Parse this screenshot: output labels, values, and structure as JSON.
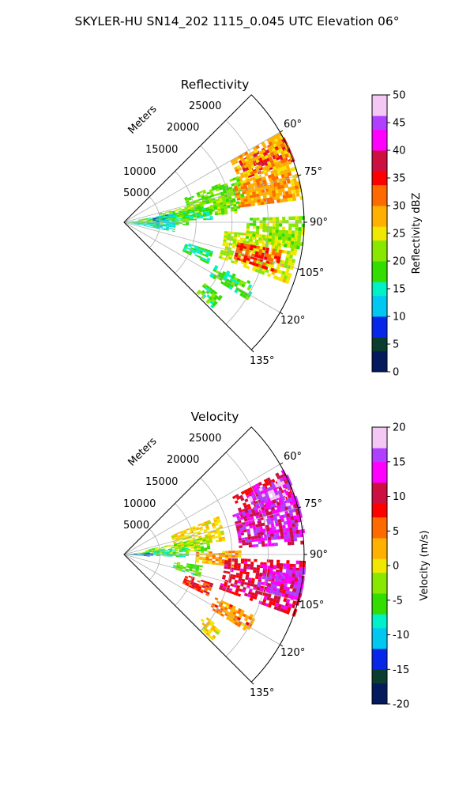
{
  "figure": {
    "suptitle": "SKYLER-HU  SN14_202  1115_0.045 UTC Elevation 06°"
  },
  "chart_data": [
    {
      "type": "heatmap",
      "projection": "polar-sector",
      "title": "Reflectivity",
      "range_label": "Meters",
      "range_ticks": [
        5000,
        10000,
        15000,
        20000,
        25000
      ],
      "azimuth_ticks": [
        "60°",
        "75°",
        "90°",
        "105°",
        "120°",
        "135°"
      ],
      "azimuth_tick_values": [
        60,
        75,
        90,
        105,
        120,
        135
      ],
      "azimuth_range": [
        45,
        135
      ],
      "range_max": 25000,
      "grid": true,
      "colorbar": {
        "label": "Reflectivity dBZ",
        "range": [
          0,
          50
        ],
        "ticks": [
          0,
          5,
          10,
          15,
          20,
          25,
          30,
          35,
          40,
          45,
          50
        ],
        "stops": [
          "#041a5c",
          "#0a3d2e",
          "#0626e8",
          "#00c8f0",
          "#00f0c8",
          "#33dd00",
          "#88e800",
          "#f0e800",
          "#ffb000",
          "#ff6a00",
          "#ff0000",
          "#cc1040",
          "#ff00ff",
          "#b040ff",
          "#f4c8f4"
        ]
      },
      "echoes": [
        {
          "az": [
            62,
            70
          ],
          "r": [
            18000,
            25000
          ],
          "value": 36
        },
        {
          "az": [
            60,
            82
          ],
          "r": [
            17000,
            25000
          ],
          "value": 28
        },
        {
          "az": [
            68,
            82
          ],
          "r": [
            9000,
            17000
          ],
          "value": 20
        },
        {
          "az": [
            72,
            82
          ],
          "r": [
            16000,
            24000
          ],
          "value": 30
        },
        {
          "az": [
            76,
            85
          ],
          "r": [
            5000,
            16000
          ],
          "value": 21
        },
        {
          "az": [
            80,
            88
          ],
          "r": [
            2000,
            12000
          ],
          "value": 17
        },
        {
          "az": [
            83,
            92
          ],
          "r": [
            0,
            9000
          ],
          "value": 19
        },
        {
          "az": [
            86,
            95
          ],
          "r": [
            0,
            6000
          ],
          "value": 24
        },
        {
          "az": [
            90,
            100
          ],
          "r": [
            0,
            7000
          ],
          "value": 14
        },
        {
          "az": [
            95,
            110
          ],
          "r": [
            14000,
            24000
          ],
          "value": 24
        },
        {
          "az": [
            100,
            108
          ],
          "r": [
            16000,
            22000
          ],
          "value": 33
        },
        {
          "az": [
            88,
            98
          ],
          "r": [
            17000,
            25000
          ],
          "value": 22
        },
        {
          "az": [
            108,
            116
          ],
          "r": [
            9000,
            13000
          ],
          "value": 17
        },
        {
          "az": [
            115,
            122
          ],
          "r": [
            14000,
            20000
          ],
          "value": 18
        },
        {
          "az": [
            127,
            133
          ],
          "r": [
            14000,
            17000
          ],
          "value": 19
        },
        {
          "az": [
            80,
            90
          ],
          "r": [
            4000,
            7000
          ],
          "value": 12
        }
      ]
    },
    {
      "type": "heatmap",
      "projection": "polar-sector",
      "title": "Velocity",
      "range_label": "Meters",
      "range_ticks": [
        5000,
        10000,
        15000,
        20000,
        25000
      ],
      "azimuth_ticks": [
        "60°",
        "75°",
        "90°",
        "105°",
        "120°",
        "135°"
      ],
      "azimuth_tick_values": [
        60,
        75,
        90,
        105,
        120,
        135
      ],
      "azimuth_range": [
        45,
        135
      ],
      "range_max": 25000,
      "grid": true,
      "colorbar": {
        "label": "Velocity (m/s)",
        "range": [
          -20,
          20
        ],
        "ticks": [
          -20,
          -15,
          -10,
          -5,
          0,
          5,
          10,
          15,
          20
        ],
        "stops": [
          "#041a5c",
          "#0a3d2e",
          "#0626e8",
          "#00c8f0",
          "#00f0c8",
          "#33dd00",
          "#88e800",
          "#f0e800",
          "#ffb000",
          "#ff6a00",
          "#ff0000",
          "#cc1040",
          "#ff00ff",
          "#b040ff",
          "#f4c8f4"
        ]
      },
      "echoes": [
        {
          "az": [
            62,
            72
          ],
          "r": [
            17000,
            25000
          ],
          "value": 10
        },
        {
          "az": [
            64,
            84
          ],
          "r": [
            19000,
            25000
          ],
          "value": 16
        },
        {
          "az": [
            70,
            86
          ],
          "r": [
            16000,
            25000
          ],
          "value": 13
        },
        {
          "az": [
            68,
            82
          ],
          "r": [
            7000,
            14000
          ],
          "value": 1
        },
        {
          "az": [
            78,
            88
          ],
          "r": [
            3000,
            12000
          ],
          "value": -3
        },
        {
          "az": [
            83,
            92
          ],
          "r": [
            0,
            9000
          ],
          "value": -6
        },
        {
          "az": [
            86,
            94
          ],
          "r": [
            0,
            4000
          ],
          "value": -12
        },
        {
          "az": [
            88,
            96
          ],
          "r": [
            10000,
            16000
          ],
          "value": 3
        },
        {
          "az": [
            92,
            110
          ],
          "r": [
            14000,
            25000
          ],
          "value": 10
        },
        {
          "az": [
            94,
            104
          ],
          "r": [
            19000,
            25000
          ],
          "value": 14
        },
        {
          "az": [
            98,
            106
          ],
          "r": [
            7000,
            11000
          ],
          "value": -5
        },
        {
          "az": [
            108,
            116
          ],
          "r": [
            9000,
            13000
          ],
          "value": 8
        },
        {
          "az": [
            115,
            122
          ],
          "r": [
            14000,
            20000
          ],
          "value": 4
        },
        {
          "az": [
            127,
            133
          ],
          "r": [
            14000,
            17000
          ],
          "value": 1
        }
      ]
    }
  ]
}
